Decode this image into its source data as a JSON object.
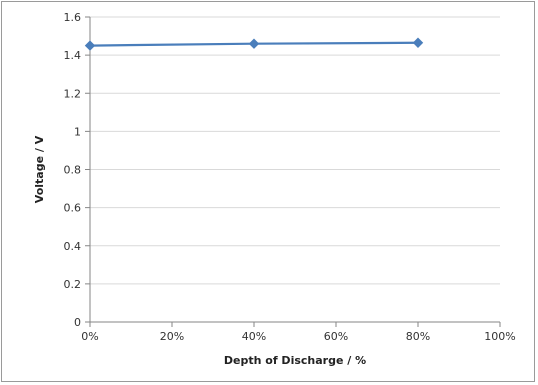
{
  "chart_data": {
    "type": "line",
    "title": "",
    "xlabel": "Depth of Discharge / %",
    "ylabel": "Voltage  /  V",
    "x": [
      0,
      40,
      80
    ],
    "xlim": [
      0,
      100
    ],
    "ylim": [
      0,
      1.6
    ],
    "x_ticks": [
      "0%",
      "20%",
      "40%",
      "60%",
      "80%",
      "100%"
    ],
    "y_ticks": [
      "0",
      "0.2",
      "0.4",
      "0.6",
      "0.8",
      "1",
      "1.2",
      "1.4",
      "1.6"
    ],
    "grid": "horizontal",
    "legend": "none",
    "series": [
      {
        "values": [
          1.45,
          1.46,
          1.465
        ],
        "color": "#4a7ebb",
        "marker": "diamond"
      }
    ]
  }
}
